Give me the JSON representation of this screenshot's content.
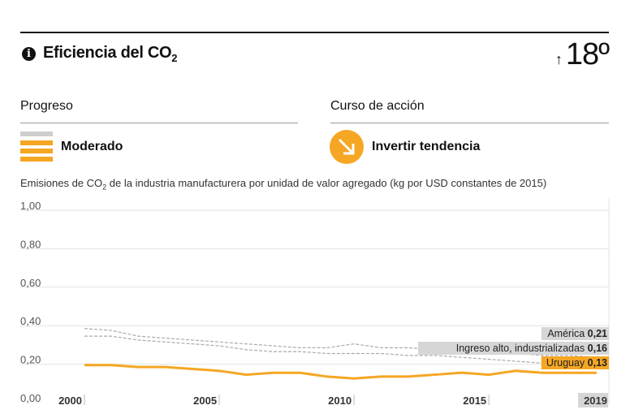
{
  "header": {
    "title": "Eficiencia del CO",
    "title_sub": "2",
    "rank_arrow": "↑",
    "rank": "18º"
  },
  "progress": {
    "heading": "Progreso",
    "status": "Moderado"
  },
  "action": {
    "heading": "Curso de acción",
    "status": "Invertir tendencia"
  },
  "subtitle": {
    "before": "Emisiones de CO",
    "sub": "2",
    "after": " de la industria manufacturera por unidad de valor agregado (kg por USD constantes de 2015)"
  },
  "colors": {
    "accent": "#f5a623",
    "reference": "#aaaaaa",
    "gray_bar": "#cfcfcf"
  },
  "chart_data": {
    "type": "line",
    "ylim": [
      0,
      1
    ],
    "xlim": [
      2000,
      2019
    ],
    "y_ticks": [
      "0,00",
      "0,20",
      "0,40",
      "0,60",
      "0,80",
      "1,00"
    ],
    "y_tick_values": [
      0,
      0.2,
      0.4,
      0.6,
      0.8,
      1.0
    ],
    "x_ticks": [
      "2000",
      "2005",
      "2010",
      "2015"
    ],
    "x_tick_values": [
      2000,
      2005,
      2010,
      2015
    ],
    "x_end_label": "2019",
    "x": [
      2000,
      2001,
      2002,
      2003,
      2004,
      2005,
      2006,
      2007,
      2008,
      2009,
      2010,
      2011,
      2012,
      2013,
      2014,
      2015,
      2016,
      2017,
      2018,
      2019
    ],
    "series": [
      {
        "name": "América",
        "value_label": "0,21",
        "style": "dashed",
        "values": [
          0.36,
          0.35,
          0.32,
          0.31,
          0.3,
          0.29,
          0.28,
          0.27,
          0.26,
          0.26,
          0.28,
          0.26,
          0.26,
          0.25,
          0.25,
          0.24,
          0.23,
          0.22,
          0.22,
          0.21
        ]
      },
      {
        "name": "Ingreso alto, industrializadas",
        "value_label": "0,16",
        "style": "dashed",
        "values": [
          0.32,
          0.32,
          0.3,
          0.29,
          0.28,
          0.27,
          0.25,
          0.24,
          0.24,
          0.23,
          0.23,
          0.23,
          0.22,
          0.22,
          0.21,
          0.2,
          0.19,
          0.18,
          0.17,
          0.16
        ]
      },
      {
        "name": "Uruguay",
        "value_label": "0,13",
        "style": "solid",
        "values": [
          0.17,
          0.17,
          0.16,
          0.16,
          0.15,
          0.14,
          0.12,
          0.13,
          0.13,
          0.11,
          0.1,
          0.11,
          0.11,
          0.12,
          0.13,
          0.12,
          0.14,
          0.13,
          0.13,
          0.13
        ]
      }
    ]
  }
}
